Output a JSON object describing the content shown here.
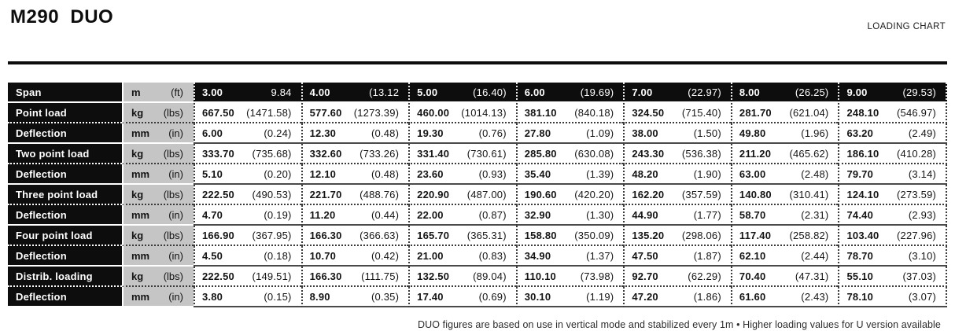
{
  "header": {
    "title": "M290  DUO",
    "right_label": "LOADING CHART"
  },
  "table": {
    "rows": [
      {
        "kind": "span",
        "label": "Span",
        "unit_metric": "m",
        "unit_imperial": "(ft)",
        "values": [
          [
            "3.00",
            "9.84"
          ],
          [
            "4.00",
            "(13.12"
          ],
          [
            "5.00",
            "(16.40)"
          ],
          [
            "6.00",
            "(19.69)"
          ],
          [
            "7.00",
            "(22.97)"
          ],
          [
            "8.00",
            "(26.25)"
          ],
          [
            "9.00",
            "(29.53)"
          ]
        ]
      },
      {
        "kind": "load",
        "label": "Point load",
        "unit_metric": "kg",
        "unit_imperial": "(lbs)",
        "values": [
          [
            "667.50",
            "(1471.58)"
          ],
          [
            "577.60",
            "(1273.39)"
          ],
          [
            "460.00",
            "(1014.13)"
          ],
          [
            "381.10",
            "(840.18)"
          ],
          [
            "324.50",
            "(715.40)"
          ],
          [
            "281.70",
            "(621.04)"
          ],
          [
            "248.10",
            "(546.97)"
          ]
        ]
      },
      {
        "kind": "deflection",
        "label": "Deflection",
        "unit_metric": "mm",
        "unit_imperial": "(in)",
        "values": [
          [
            "6.00",
            "(0.24)"
          ],
          [
            "12.30",
            "(0.48)"
          ],
          [
            "19.30",
            "(0.76)"
          ],
          [
            "27.80",
            "(1.09)"
          ],
          [
            "38.00",
            "(1.50)"
          ],
          [
            "49.80",
            "(1.96)"
          ],
          [
            "63.20",
            "(2.49)"
          ]
        ]
      },
      {
        "kind": "load",
        "label": "Two point load",
        "unit_metric": "kg",
        "unit_imperial": "(lbs)",
        "values": [
          [
            "333.70",
            "(735.68)"
          ],
          [
            "332.60",
            "(733.26)"
          ],
          [
            "331.40",
            "(730.61)"
          ],
          [
            "285.80",
            "(630.08)"
          ],
          [
            "243.30",
            "(536.38)"
          ],
          [
            "211.20",
            "(465.62)"
          ],
          [
            "186.10",
            "(410.28)"
          ]
        ]
      },
      {
        "kind": "deflection",
        "label": "Deflection",
        "unit_metric": "mm",
        "unit_imperial": "(in)",
        "values": [
          [
            "5.10",
            "(0.20)"
          ],
          [
            "12.10",
            "(0.48)"
          ],
          [
            "23.60",
            "(0.93)"
          ],
          [
            "35.40",
            "(1.39)"
          ],
          [
            "48.20",
            "(1.90)"
          ],
          [
            "63.00",
            "(2.48)"
          ],
          [
            "79.70",
            "(3.14)"
          ]
        ]
      },
      {
        "kind": "load",
        "label": "Three point load",
        "unit_metric": "kg",
        "unit_imperial": "(lbs)",
        "values": [
          [
            "222.50",
            "(490.53)"
          ],
          [
            "221.70",
            "(488.76)"
          ],
          [
            "220.90",
            "(487.00)"
          ],
          [
            "190.60",
            "(420.20)"
          ],
          [
            "162.20",
            "(357.59)"
          ],
          [
            "140.80",
            "(310.41)"
          ],
          [
            "124.10",
            "(273.59)"
          ]
        ]
      },
      {
        "kind": "deflection",
        "label": "Deflection",
        "unit_metric": "mm",
        "unit_imperial": "(in)",
        "values": [
          [
            "4.70",
            "(0.19)"
          ],
          [
            "11.20",
            "(0.44)"
          ],
          [
            "22.00",
            "(0.87)"
          ],
          [
            "32.90",
            "(1.30)"
          ],
          [
            "44.90",
            "(1.77)"
          ],
          [
            "58.70",
            "(2.31)"
          ],
          [
            "74.40",
            "(2.93)"
          ]
        ]
      },
      {
        "kind": "load",
        "label": "Four point load",
        "unit_metric": "kg",
        "unit_imperial": "(lbs)",
        "values": [
          [
            "166.90",
            "(367.95)"
          ],
          [
            "166.30",
            "(366.63)"
          ],
          [
            "165.70",
            "(365.31)"
          ],
          [
            "158.80",
            "(350.09)"
          ],
          [
            "135.20",
            "(298.06)"
          ],
          [
            "117.40",
            "(258.82)"
          ],
          [
            "103.40",
            "(227.96)"
          ]
        ]
      },
      {
        "kind": "deflection",
        "label": "Deflection",
        "unit_metric": "mm",
        "unit_imperial": "(in)",
        "values": [
          [
            "4.50",
            "(0.18)"
          ],
          [
            "10.70",
            "(0.42)"
          ],
          [
            "21.00",
            "(0.83)"
          ],
          [
            "34.90",
            "(1.37)"
          ],
          [
            "47.50",
            "(1.87)"
          ],
          [
            "62.10",
            "(2.44)"
          ],
          [
            "78.70",
            "(3.10)"
          ]
        ]
      },
      {
        "kind": "load",
        "label": "Distrib. loading",
        "unit_metric": "kg",
        "unit_imperial": "(lbs)",
        "values": [
          [
            "222.50",
            "(149.51)"
          ],
          [
            "166.30",
            "(111.75)"
          ],
          [
            "132.50",
            "(89.04)"
          ],
          [
            "110.10",
            "(73.98)"
          ],
          [
            "92.70",
            "(62.29)"
          ],
          [
            "70.40",
            "(47.31)"
          ],
          [
            "55.10",
            "(37.03)"
          ]
        ]
      },
      {
        "kind": "deflection",
        "label": "Deflection",
        "unit_metric": "mm",
        "unit_imperial": "(in)",
        "values": [
          [
            "3.80",
            "(0.15)"
          ],
          [
            "8.90",
            "(0.35)"
          ],
          [
            "17.40",
            "(0.69)"
          ],
          [
            "30.10",
            "(1.19)"
          ],
          [
            "47.20",
            "(1.86)"
          ],
          [
            "61.60",
            "(2.43)"
          ],
          [
            "78.10",
            "(3.07)"
          ]
        ]
      }
    ]
  },
  "footer": {
    "note": "DUO figures are based on use in vertical mode and stabilized every 1m • Higher loading values for U version available"
  },
  "colors": {
    "row_header_bg": "#0d0d0d",
    "units_bg": "#c5c5c5",
    "text": "#141414"
  }
}
